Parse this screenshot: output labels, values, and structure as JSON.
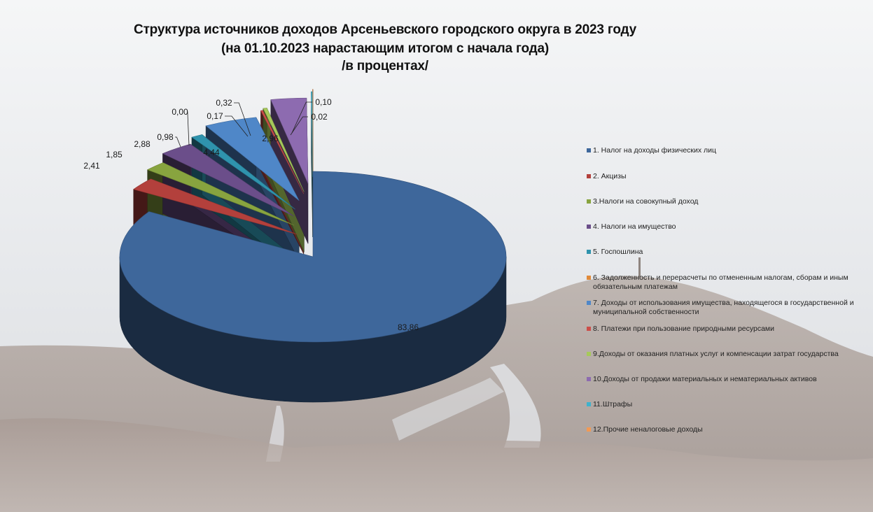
{
  "header": {
    "title_line1": "Структура источников доходов Арсеньевского городского округа в 2023 году",
    "title_line2": "(на 01.10.2023 нарастающим итогом с начала года)",
    "title_line3": "/в процентах/"
  },
  "chart_data": {
    "type": "pie",
    "title": "Структура источников доходов Арсеньевского городского округа в 2023 году (на 01.10.2023 нарастающим итогом с начала года) /в процентах/",
    "legend_position": "right",
    "series": [
      {
        "name": "1. Налог на  доходы физических лиц",
        "value": 83.86,
        "label": "83,86",
        "color": "#3e679b"
      },
      {
        "name": "2. Акцизы",
        "value": 2.41,
        "label": "2,41",
        "color": "#b3403c"
      },
      {
        "name": "3.Налоги на совокупный доход",
        "value": 1.85,
        "label": "1,85",
        "color": "#88a43f"
      },
      {
        "name": "4. Налоги на имущество",
        "value": 2.88,
        "label": "2,88",
        "color": "#6b4e8a"
      },
      {
        "name": "5. Госпошлина",
        "value": 0.98,
        "label": "0,98",
        "color": "#2f93ad"
      },
      {
        "name": "6. Задолженность и перерасчеты по отмененным налогам, сборам и иным обязательным платежам",
        "value": 0.0,
        "label": "0,00",
        "color": "#e08a3a"
      },
      {
        "name": "7. Доходы от использования имущества, находящегося в государственной и муниципальной собственности",
        "value": 4.44,
        "label": "4,44",
        "color": "#4f87c8"
      },
      {
        "name": "8. Платежи при пользование природными ресурсами",
        "value": 0.17,
        "label": "0,17",
        "color": "#cc4e49"
      },
      {
        "name": "9.Доходы от оказания платных услуг и компенсации затрат государства",
        "value": 0.32,
        "label": "0,32",
        "color": "#a6c95a"
      },
      {
        "name": "10.Доходы от продажи материальных и нематериальных активов",
        "value": 2.96,
        "label": "2,96",
        "color": "#8d6bb0"
      },
      {
        "name": "11.Штрафы",
        "value": 0.1,
        "label": "0,10",
        "color": "#3fb2cc"
      },
      {
        "name": "12.Прочие неналоговые доходы",
        "value": 0.02,
        "label": "0,02",
        "color": "#f29a55"
      }
    ]
  }
}
